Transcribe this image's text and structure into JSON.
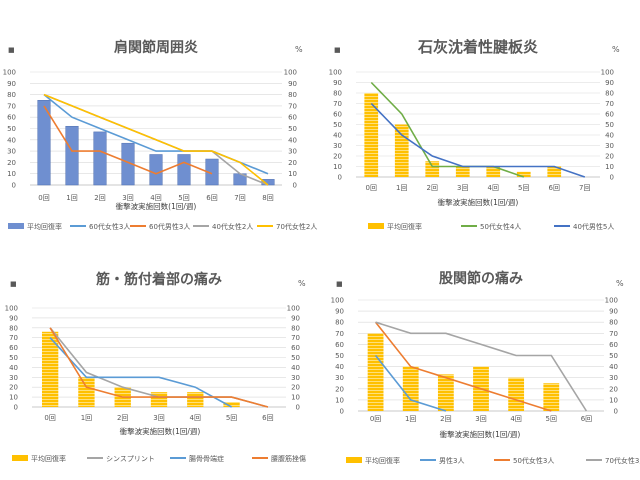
{
  "chart_data": [
    {
      "type": "bar",
      "title": "肩関節周囲炎",
      "ylabel_left": "■",
      "ylabel_right": "%",
      "xlabel": "衝撃波実施回数(1回/週)",
      "ylim": [
        0,
        100
      ],
      "yticks": [
        0,
        10,
        20,
        30,
        40,
        50,
        60,
        70,
        80,
        90,
        100
      ],
      "categories": [
        "0回",
        "1回",
        "2回",
        "3回",
        "4回",
        "5回",
        "6回",
        "7回",
        "8回"
      ],
      "bars": {
        "name": "平均回復率",
        "color": "#6F8FD0",
        "striped": false,
        "values": [
          75,
          52,
          47,
          37,
          27,
          27,
          23,
          10,
          5
        ]
      },
      "series": [
        {
          "name": "60代女性3人",
          "color": "#5B9BD5",
          "values": [
            80,
            60,
            50,
            40,
            30,
            30,
            30,
            20,
            10
          ]
        },
        {
          "name": "60代男性3人",
          "color": "#ED7D31",
          "values": [
            70,
            30,
            30,
            20,
            10,
            20,
            10,
            null,
            null
          ]
        },
        {
          "name": "40代女性2人",
          "color": "#A5A5A5",
          "values": [
            80,
            70,
            60,
            50,
            40,
            30,
            30,
            10,
            0
          ]
        },
        {
          "name": "70代女性2人",
          "color": "#FFC000",
          "values": [
            80,
            70,
            60,
            50,
            40,
            30,
            30,
            20,
            0
          ]
        }
      ]
    },
    {
      "type": "bar",
      "title": "石灰沈着性腱板炎",
      "ylabel_left": "■",
      "ylabel_right": "%",
      "xlabel": "衝撃波実施回数(1回/週)",
      "ylim": [
        0,
        100
      ],
      "yticks": [
        0,
        10,
        20,
        30,
        40,
        50,
        60,
        70,
        80,
        90,
        100
      ],
      "categories": [
        "0回",
        "1回",
        "2回",
        "3回",
        "4回",
        "5回",
        "6回",
        "7回"
      ],
      "bars": {
        "name": "平均回復率",
        "color": "#FFC000",
        "striped": true,
        "values": [
          80,
          50,
          15,
          10,
          10,
          5,
          10,
          null
        ]
      },
      "series": [
        {
          "name": "50代女性4人",
          "color": "#70AD47",
          "values": [
            90,
            60,
            10,
            10,
            10,
            0,
            null,
            null
          ]
        },
        {
          "name": "40代男性5人",
          "color": "#4472C4",
          "values": [
            70,
            40,
            20,
            10,
            10,
            10,
            10,
            0
          ]
        }
      ]
    },
    {
      "type": "bar",
      "title": "筋・筋付着部の痛み",
      "ylabel_left": "■",
      "ylabel_right": "%",
      "xlabel": "衝撃波実施回数(1回/週)",
      "ylim": [
        0,
        100
      ],
      "yticks": [
        0,
        10,
        20,
        30,
        40,
        50,
        60,
        70,
        80,
        90,
        100
      ],
      "categories": [
        "0回",
        "1回",
        "2回",
        "3回",
        "4回",
        "5回",
        "6回"
      ],
      "bars": {
        "name": "平均回復率",
        "color": "#FFC000",
        "striped": true,
        "values": [
          76,
          30,
          20,
          15,
          15,
          5,
          null
        ]
      },
      "series": [
        {
          "name": "シンスプリント",
          "color": "#A5A5A5",
          "values": [
            80,
            35,
            20,
            10,
            10,
            10,
            0
          ]
        },
        {
          "name": "腸骨骨端症",
          "color": "#5B9BD5",
          "values": [
            70,
            30,
            30,
            30,
            20,
            0,
            null
          ]
        },
        {
          "name": "腰腹筋挫傷",
          "color": "#ED7D31",
          "values": [
            80,
            20,
            10,
            10,
            10,
            10,
            0
          ]
        }
      ]
    },
    {
      "type": "bar",
      "title": "股関節の痛み",
      "ylabel_left": "■",
      "ylabel_right": "%",
      "xlabel": "衝撃波実施回数(1回/週)",
      "ylim": [
        0,
        100
      ],
      "yticks": [
        0,
        10,
        20,
        30,
        40,
        50,
        60,
        70,
        80,
        90,
        100
      ],
      "categories": [
        "0回",
        "1回",
        "2回",
        "3回",
        "4回",
        "5回",
        "6回"
      ],
      "bars": {
        "name": "平均回復率",
        "color": "#FFC000",
        "striped": true,
        "values": [
          70,
          40,
          33,
          40,
          30,
          25,
          null
        ]
      },
      "series": [
        {
          "name": "男性3人",
          "color": "#5B9BD5",
          "values": [
            50,
            10,
            0,
            null,
            null,
            null,
            null
          ]
        },
        {
          "name": "50代女性3人",
          "color": "#ED7D31",
          "values": [
            80,
            40,
            30,
            20,
            10,
            0,
            null
          ]
        },
        {
          "name": "70代女性3人",
          "color": "#A5A5A5",
          "values": [
            80,
            70,
            70,
            60,
            50,
            50,
            0
          ]
        }
      ]
    }
  ]
}
